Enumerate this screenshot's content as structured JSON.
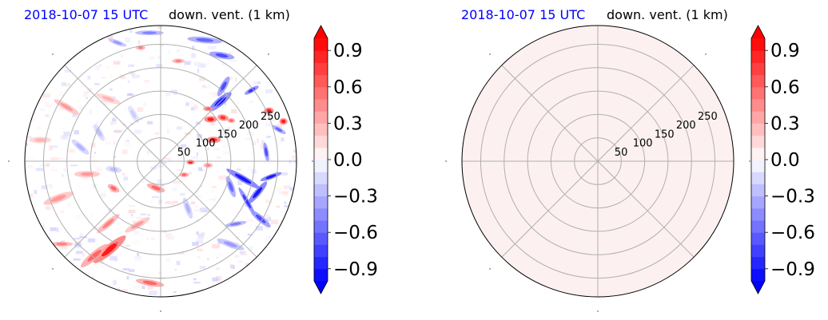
{
  "chart_data": [
    {
      "type": "polar-contour",
      "title_left": "2018-10-07 15 UTC",
      "title_right": "down. vent. (1 km)",
      "radial_ticks": [
        50,
        100,
        150,
        200,
        250
      ],
      "radial_max": 290,
      "angular_gridlines_deg": [
        0,
        45,
        90,
        135,
        180,
        225,
        270,
        315
      ],
      "field_description": "mostly near-zero values with scattered positive (red) patches and negative (blue) streaks in the northeast and east",
      "colorbar": {
        "ticks": [
          "0.9",
          "0.6",
          "0.3",
          "0.0",
          "−0.3",
          "−0.6",
          "−0.9"
        ],
        "range": [
          -1.0,
          1.0
        ],
        "extend": "both",
        "colormap": "bwr"
      }
    },
    {
      "type": "polar-contour",
      "title_left": "2018-10-07 15 UTC",
      "title_right": "down. vent. (1 km)",
      "radial_ticks": [
        50,
        100,
        150,
        200,
        250
      ],
      "radial_max": 290,
      "angular_gridlines_deg": [
        0,
        45,
        90,
        135,
        180,
        225,
        270,
        315
      ],
      "field_description": "uniform near-zero value (pale pink) across the whole domain",
      "colorbar": {
        "ticks": [
          "0.9",
          "0.6",
          "0.3",
          "0.0",
          "−0.3",
          "−0.6",
          "−0.9"
        ],
        "range": [
          -1.0,
          1.0
        ],
        "extend": "both",
        "colormap": "bwr"
      }
    }
  ],
  "colors": {
    "title_date": "#0000ff",
    "grid": "#b0b0b0",
    "uniform_fill": "#fdf0f0",
    "positive": "#ff0000",
    "negative": "#0000ff"
  }
}
